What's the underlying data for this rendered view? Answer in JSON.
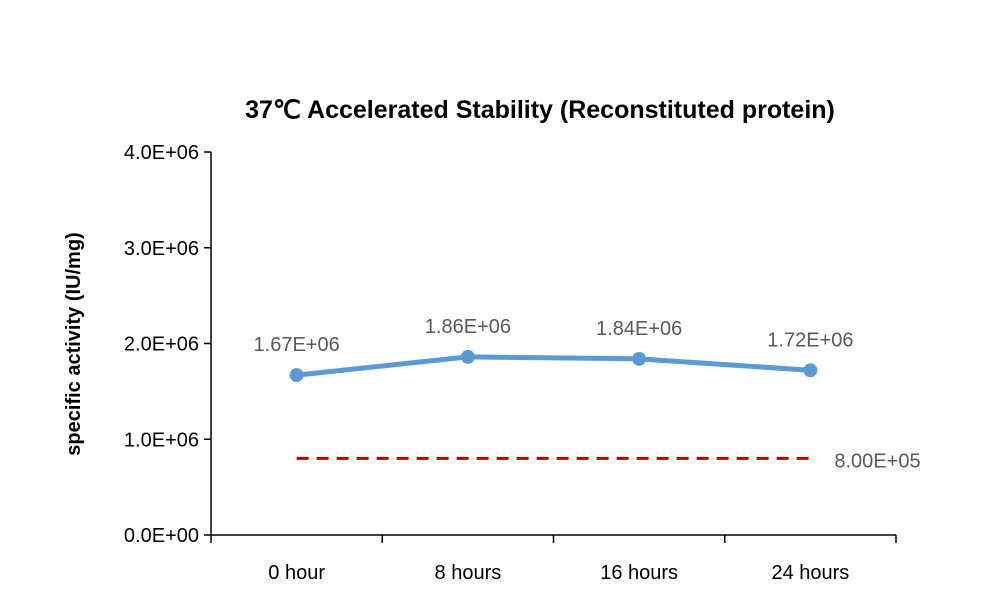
{
  "chart_data": {
    "type": "line",
    "title": "37℃ Accelerated  Stability (Reconstituted protein)",
    "xlabel": "",
    "ylabel": "specific activity (IU/mg)",
    "categories": [
      "0 hour",
      "8 hours",
      "16 hours",
      "24 hours"
    ],
    "ylim": [
      0,
      4000000
    ],
    "yticks": [
      0,
      1000000,
      2000000,
      3000000,
      4000000
    ],
    "ytick_labels": [
      "0.0E+00",
      "1.0E+06",
      "2.0E+06",
      "3.0E+06",
      "4.0E+06"
    ],
    "grid": false,
    "series": [
      {
        "values": [
          1670000,
          1860000,
          1840000,
          1720000
        ],
        "labels": [
          "1.67E+06",
          "1.86E+06",
          "1.84E+06",
          "1.72E+06"
        ],
        "color": "#5b9bd5",
        "style": "solid",
        "markers": true
      },
      {
        "values": [
          800000,
          800000,
          800000,
          800000
        ],
        "labels": [
          "8.00E+05"
        ],
        "color": "#c00000",
        "style": "dashed",
        "markers": false
      }
    ]
  }
}
